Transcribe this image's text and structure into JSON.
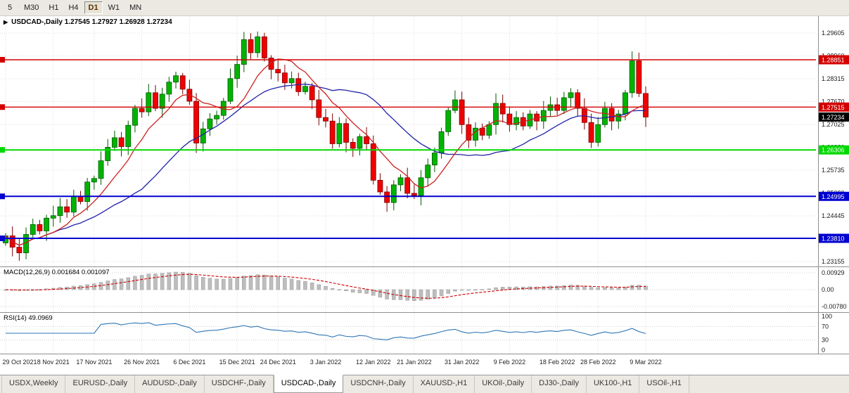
{
  "toolbar": {
    "timeframes": [
      "5",
      "M30",
      "H1",
      "H4",
      "D1",
      "W1",
      "MN"
    ],
    "active": "D1"
  },
  "tabs": {
    "items": [
      "USDX,Weekly",
      "EURUSD-,Daily",
      "AUDUSD-,Daily",
      "USDCHF-,Daily",
      "USDCAD-,Daily",
      "USDCNH-,Daily",
      "XAUUSD-,H1",
      "UKOil-,Daily",
      "DJ30-,Daily",
      "UK100-,H1",
      "USOil-,H1"
    ],
    "active_index": 4
  },
  "chart_data": {
    "type": "candlestick",
    "symbol": "USDCAD-",
    "timeframe": "Daily",
    "title_line": "USDCAD-,Daily 1.27545 1.27927 1.26928 1.27234",
    "ohlc": {
      "open": 1.27545,
      "high": 1.27927,
      "low": 1.26928,
      "close": 1.27234
    },
    "y_axis_ticks": [
      "1.29605",
      "1.28960",
      "1.28315",
      "1.27670",
      "1.27025",
      "1.26380",
      "1.25735",
      "1.25090",
      "1.24445",
      "1.23800",
      "1.23155"
    ],
    "y_range": [
      1.23016,
      1.30081
    ],
    "x_labels": [
      "29 Oct 2021",
      "8 Nov 2021",
      "17 Nov 2021",
      "26 Nov 2021",
      "6 Dec 2021",
      "15 Dec 2021",
      "24 Dec 2021",
      "3 Jan 2022",
      "12 Jan 2022",
      "21 Jan 2022",
      "31 Jan 2022",
      "9 Feb 2022",
      "18 Feb 2022",
      "28 Feb 2022",
      "9 Mar 2022"
    ],
    "levels": [
      {
        "price": 1.28851,
        "label": "1.28851",
        "color": "#d40000",
        "width": 1.4
      },
      {
        "price": 1.27515,
        "label": "1.27515",
        "color": "#d40000",
        "width": 1.4
      },
      {
        "price": 1.26306,
        "label": "1.26306",
        "color": "#00d900",
        "width": 2
      },
      {
        "price": 1.24995,
        "label": "1.24995",
        "color": "#0000d0",
        "width": 2
      },
      {
        "price": 1.2381,
        "label": "1.23810",
        "color": "#0000d0",
        "width": 2
      }
    ],
    "current_price": {
      "value": 1.27234,
      "label": "1.27234",
      "badge_color": "#000000"
    },
    "candles_close": [
      1.2388,
      1.2356,
      1.234,
      1.2392,
      1.242,
      1.2402,
      1.2438,
      1.2445,
      1.247,
      1.2455,
      1.25,
      1.2485,
      1.254,
      1.255,
      1.26,
      1.2638,
      1.2665,
      1.264,
      1.27,
      1.2748,
      1.2738,
      1.2792,
      1.2748,
      1.2788,
      1.2822,
      1.284,
      1.2802,
      1.2768,
      1.265,
      1.269,
      1.2718,
      1.2728,
      1.2768,
      1.2832,
      1.2872,
      1.2942,
      1.2905,
      1.295,
      1.289,
      1.2858,
      1.2848,
      1.282,
      1.2832,
      1.2795,
      1.281,
      1.2772,
      1.2722,
      1.2712,
      1.2648,
      1.2705,
      1.2652,
      1.2635,
      1.2668,
      1.2648,
      1.2545,
      1.2512,
      1.2482,
      1.2532,
      1.2552,
      1.2508,
      1.2502,
      1.2552,
      1.2588,
      1.2622,
      1.2682,
      1.2742,
      1.2772,
      1.2702,
      1.2658,
      1.2692,
      1.2672,
      1.2702,
      1.2762,
      1.2732,
      1.2702,
      1.2722,
      1.2698,
      1.2732,
      1.2712,
      1.2742,
      1.2758,
      1.2742,
      1.2778,
      1.2792,
      1.2748,
      1.2708,
      1.2652,
      1.2702,
      1.2748,
      1.2712,
      1.2732,
      1.2792,
      1.2882,
      1.279,
      1.27234
    ],
    "colors": {
      "up": "#00b300",
      "up_border": "#005a00",
      "down": "#f00000",
      "down_border": "#7a0000",
      "ma_fast": "#cc2222",
      "ma_slow": "#2222aa",
      "macd_hist": "#bdbdbd",
      "macd_signal": "#cc0000",
      "rsi_line": "#2e75b6"
    },
    "macd": {
      "header": "MACD(12,26,9) 0.001684 0.001097",
      "fast_ema": 12,
      "slow_ema": 26,
      "signal": 9,
      "values": [
        0.001684,
        0.001097
      ],
      "axis_labels": [
        "0.00929",
        "0.00",
        "-0.00780"
      ]
    },
    "rsi": {
      "header": "RSI(14) 49.0969",
      "period": 14,
      "value": 49.0969,
      "axis_labels": [
        "100",
        "70",
        "30",
        "0"
      ],
      "overbought": 70,
      "oversold": 30
    }
  }
}
